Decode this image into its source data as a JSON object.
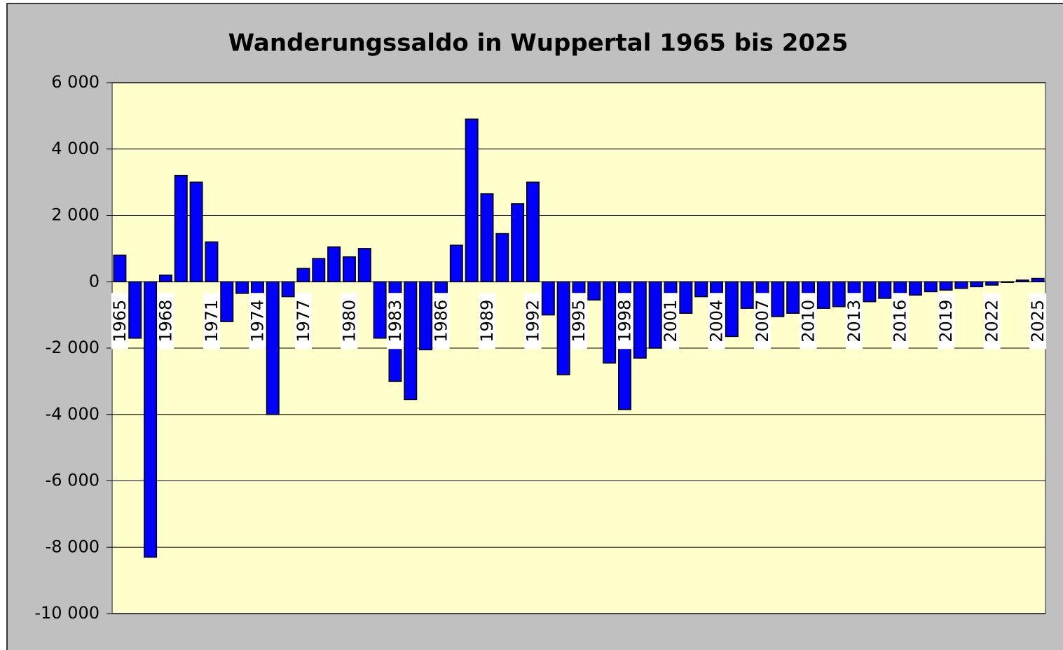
{
  "chart_data": {
    "type": "bar",
    "title": "Wanderungssaldo in Wuppertal 1965 bis 2025",
    "categories": [
      "1965",
      null,
      null,
      "1968",
      null,
      null,
      "1971",
      null,
      null,
      "1974",
      null,
      null,
      "1977",
      null,
      null,
      "1980",
      null,
      null,
      "1983",
      null,
      null,
      "1986",
      null,
      null,
      "1989",
      null,
      null,
      "1992",
      null,
      null,
      "1995",
      null,
      null,
      "1998",
      null,
      null,
      "2001",
      null,
      null,
      "2004",
      null,
      null,
      "2007",
      null,
      null,
      "2010",
      null,
      null,
      "2013",
      null,
      null,
      "2016",
      null,
      null,
      "2019",
      null,
      null,
      "2022",
      null,
      null,
      "2025"
    ],
    "values": [
      800,
      -1700,
      -8300,
      200,
      3200,
      3000,
      1200,
      -1200,
      -350,
      -350,
      -4000,
      -450,
      400,
      700,
      1050,
      750,
      1000,
      -1700,
      -3000,
      -3550,
      -2050,
      -350,
      1100,
      4900,
      2650,
      1450,
      2350,
      3000,
      -1000,
      -2800,
      -400,
      -550,
      -2450,
      -3850,
      -2300,
      -2000,
      -400,
      -950,
      -450,
      -350,
      -1650,
      -800,
      -350,
      -1050,
      -950,
      -350,
      -800,
      -750,
      -400,
      -600,
      -500,
      -350,
      -400,
      -300,
      -250,
      -200,
      -150,
      -100,
      -20,
      50,
      100
    ],
    "color": "#0000ff",
    "ylim": [
      -10000,
      6000
    ],
    "yticks": [
      {
        "value": -10000,
        "label": "-10 000"
      },
      {
        "value": -8000,
        "label": "-8 000"
      },
      {
        "value": -6000,
        "label": "-6 000"
      },
      {
        "value": -4000,
        "label": "-4 000"
      },
      {
        "value": -2000,
        "label": "-2 000"
      },
      0,
      {
        "value": 2000,
        "label": "2 000"
      },
      {
        "value": 4000,
        "label": "4 000"
      },
      {
        "value": 6000,
        "label": "6 000"
      }
    ],
    "grid": true
  }
}
